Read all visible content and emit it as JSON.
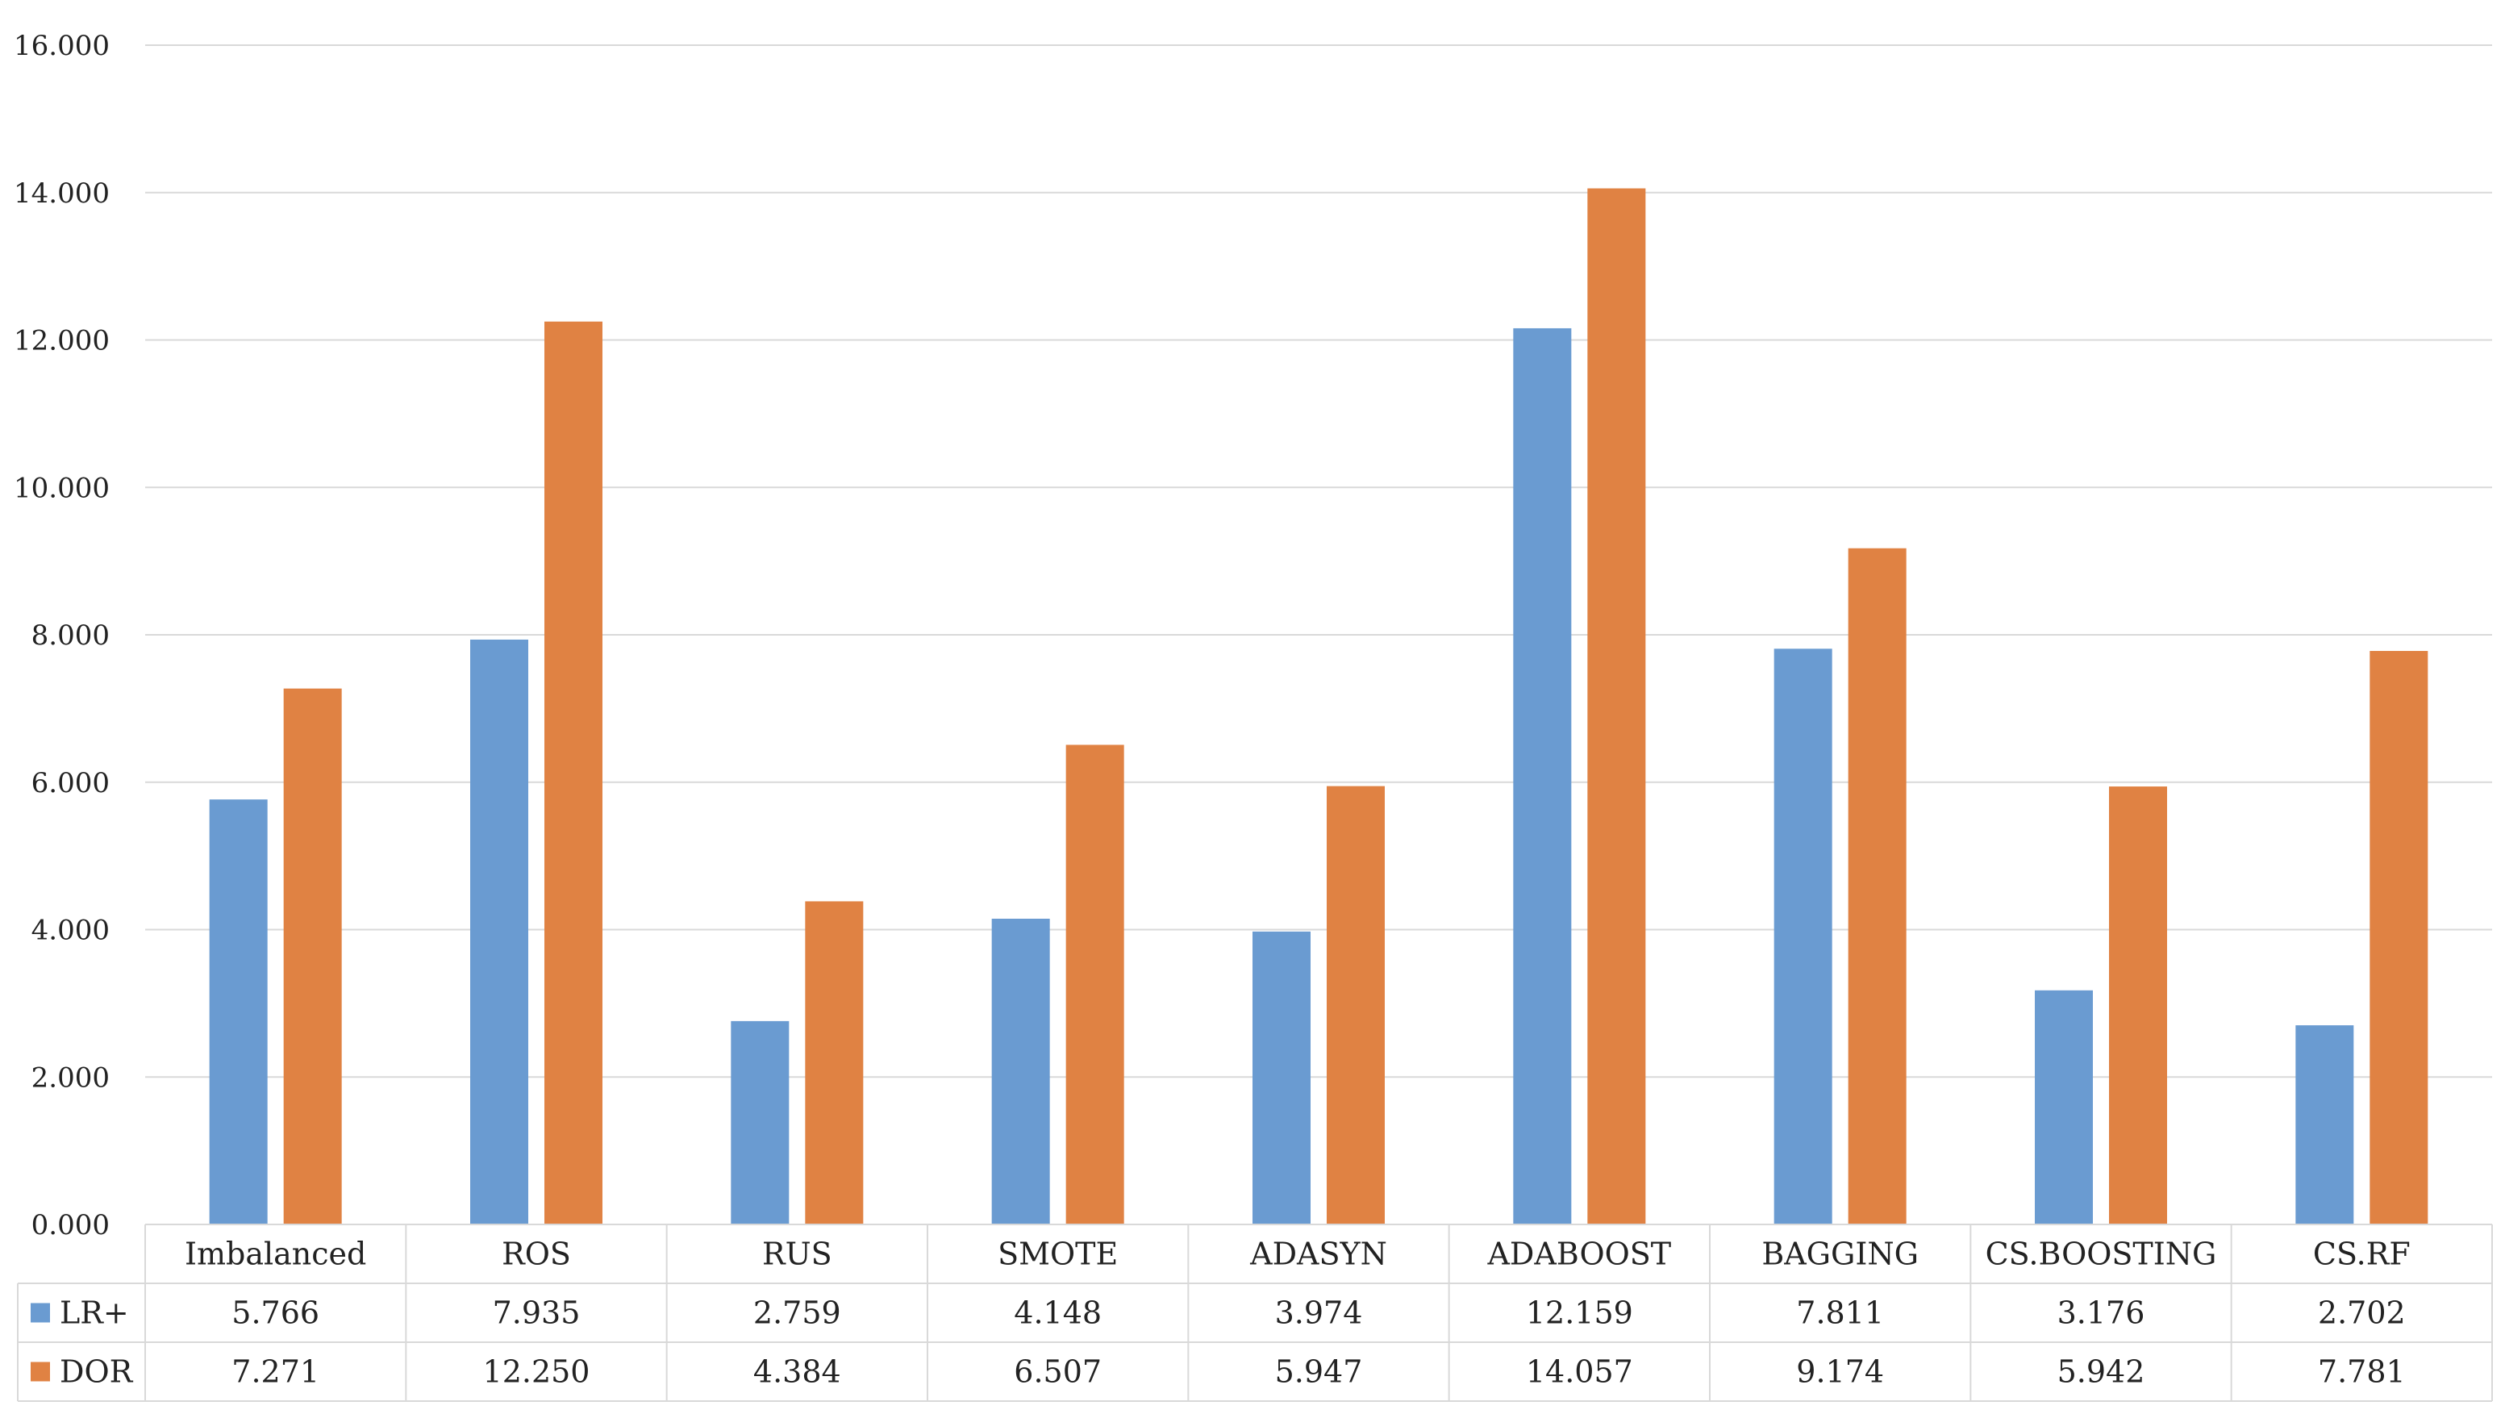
{
  "chart_data": {
    "type": "bar",
    "title": "",
    "xlabel": "",
    "ylabel": "",
    "ylim": [
      0,
      16
    ],
    "yticks": [
      "0.000",
      "2.000",
      "4.000",
      "6.000",
      "8.000",
      "10.000",
      "12.000",
      "14.000",
      "16.000"
    ],
    "grid": true,
    "legend": "data-table-left",
    "categories": [
      "Imbalanced",
      "ROS",
      "RUS",
      "SMOTE",
      "ADASYN",
      "ADABOOST",
      "BAGGING",
      "CS.BOOSTING",
      "CS.RF"
    ],
    "series": [
      {
        "name": "LR+",
        "color": "#6a9bd1",
        "values": [
          5.766,
          7.935,
          2.759,
          4.148,
          3.974,
          12.159,
          7.811,
          3.176,
          2.702
        ],
        "labels": [
          "5.766",
          "7.935",
          "2.759",
          "4.148",
          "3.974",
          "12.159",
          "7.811",
          "3.176",
          "2.702"
        ]
      },
      {
        "name": "DOR",
        "color": "#e08243",
        "values": [
          7.271,
          12.25,
          4.384,
          6.507,
          5.947,
          14.057,
          9.174,
          5.942,
          7.781
        ],
        "labels": [
          "7.271",
          "12.250",
          "4.384",
          "6.507",
          "5.947",
          "14.057",
          "9.174",
          "5.942",
          "7.781"
        ]
      }
    ]
  }
}
